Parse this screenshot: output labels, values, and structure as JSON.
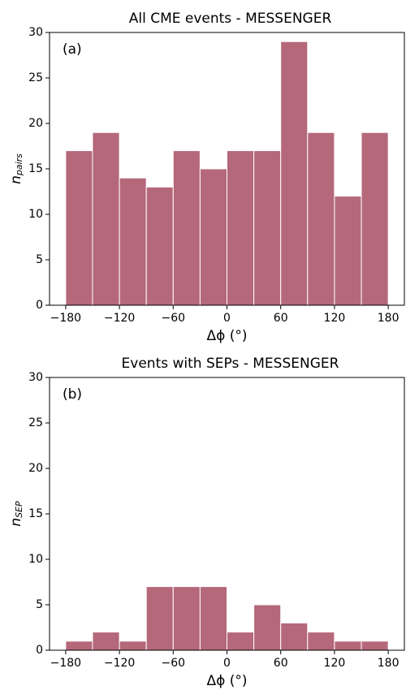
{
  "chart_data": [
    {
      "type": "histogram",
      "title": "All CME events - MESSENGER",
      "annotation": "(a)",
      "xlabel": "Δϕ (°)",
      "ylabel": "n",
      "ylabel_sub": "pairs",
      "bins": [
        -180,
        -150,
        -120,
        -90,
        -60,
        -30,
        0,
        30,
        60,
        90,
        120,
        150,
        180
      ],
      "values": [
        17,
        19,
        14,
        13,
        17,
        15,
        17,
        17,
        29,
        19,
        12,
        19
      ],
      "color": "#b5687a",
      "xlim": [
        -198,
        198
      ],
      "xticks": [
        {
          "value": -180,
          "label": "−180"
        },
        {
          "value": -120,
          "label": "−120"
        },
        {
          "value": -60,
          "label": "−60"
        },
        0,
        60,
        120,
        180
      ],
      "ylim": [
        0,
        30
      ],
      "yticks": [
        0,
        5,
        10,
        15,
        20,
        25,
        30
      ]
    },
    {
      "type": "histogram",
      "title": "Events with SEPs - MESSENGER",
      "annotation": "(b)",
      "xlabel": "Δϕ (°)",
      "ylabel": "n",
      "ylabel_sub": "SEP",
      "bins": [
        -180,
        -150,
        -120,
        -90,
        -60,
        -30,
        0,
        30,
        60,
        90,
        120,
        150,
        180
      ],
      "values": [
        1,
        2,
        1,
        7,
        7,
        7,
        2,
        5,
        3,
        2,
        1,
        1
      ],
      "color": "#b5687a",
      "xlim": [
        -198,
        198
      ],
      "xticks": [
        {
          "value": -180,
          "label": "−180"
        },
        {
          "value": -120,
          "label": "−120"
        },
        {
          "value": -60,
          "label": "−60"
        },
        0,
        60,
        120,
        180
      ],
      "ylim": [
        0,
        30
      ],
      "yticks": [
        0,
        5,
        10,
        15,
        20,
        25,
        30
      ]
    }
  ]
}
